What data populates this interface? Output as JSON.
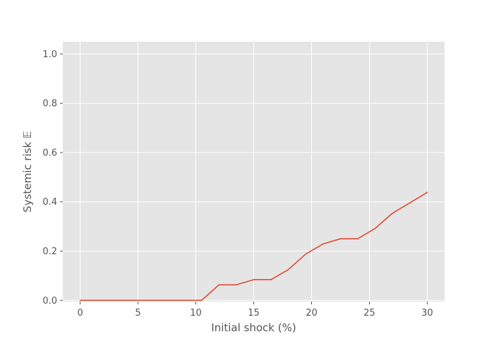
{
  "chart_data": {
    "type": "line",
    "title": "",
    "xlabel": "Initial shock (%)",
    "ylabel": "Systemic risk 𝔼",
    "xlim": [
      -1.5,
      31.5
    ],
    "ylim": [
      -0.005,
      1.05
    ],
    "xticks": [
      0,
      5,
      10,
      15,
      20,
      25,
      30
    ],
    "yticks": [
      0.0,
      0.2,
      0.4,
      0.6,
      0.8,
      1.0
    ],
    "xtick_labels": [
      "0",
      "5",
      "10",
      "15",
      "20",
      "25",
      "30"
    ],
    "ytick_labels": [
      "0.0",
      "0.2",
      "0.4",
      "0.6",
      "0.8",
      "1.0"
    ],
    "grid": true,
    "background": "#e5e5e5",
    "grid_color": "#ffffff",
    "line_color": "#e24a33",
    "series": [
      {
        "x": [
          0,
          1.5,
          3,
          4.5,
          6,
          7.5,
          9,
          10.5,
          12,
          13.5,
          15,
          16.5,
          18,
          19.5,
          21,
          22.5,
          24,
          25.5,
          27,
          28.5,
          30
        ],
        "values": [
          0,
          0,
          0,
          0,
          0,
          0,
          0,
          0,
          0.063,
          0.063,
          0.084,
          0.084,
          0.125,
          0.188,
          0.229,
          0.25,
          0.25,
          0.292,
          0.354,
          0.396,
          0.438
        ]
      }
    ]
  }
}
